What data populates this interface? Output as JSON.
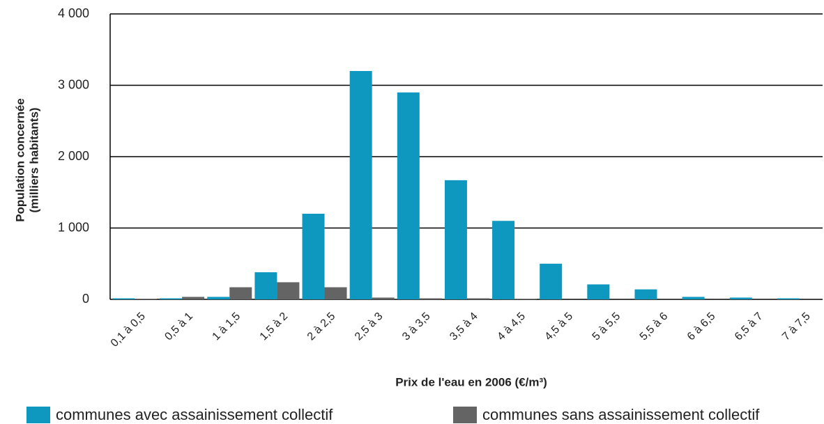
{
  "chart_data": {
    "type": "bar",
    "xlabel": "Prix de l'eau en 2006 (€/m³)",
    "ylabel": [
      "Population concernée",
      "(milliers habitants)"
    ],
    "categories": [
      "0,1 à 0,5",
      "0,5 à 1",
      "1 à 1,5",
      "1,5 à 2",
      "2 à 2,5",
      "2,5 à 3",
      "3 à 3,5",
      "3,5 à 4",
      "4 à 4,5",
      "4,5 à 5",
      "5 à 5,5",
      "5,5 à 6",
      "6 à 6,5",
      "6,5 à 7",
      "7 à 7,5"
    ],
    "series": [
      {
        "name": "communes avec assainissement collectif",
        "color": "#0f98bf",
        "values": [
          15,
          15,
          35,
          380,
          1200,
          3200,
          2900,
          1670,
          1100,
          500,
          210,
          140,
          35,
          25,
          15
        ]
      },
      {
        "name": "communes sans assainissement collectif",
        "color": "#646464",
        "values": [
          5,
          35,
          170,
          240,
          170,
          25,
          15,
          15,
          5,
          0,
          0,
          0,
          0,
          0,
          0
        ]
      }
    ],
    "ylim": [
      0,
      4000
    ],
    "yticks": [
      0,
      {
        "value": 1000,
        "label": "1 000"
      },
      {
        "value": 2000,
        "label": "2 000"
      },
      {
        "value": 3000,
        "label": "3 000"
      },
      {
        "value": 4000,
        "label": "4 000"
      }
    ],
    "grid": true
  }
}
